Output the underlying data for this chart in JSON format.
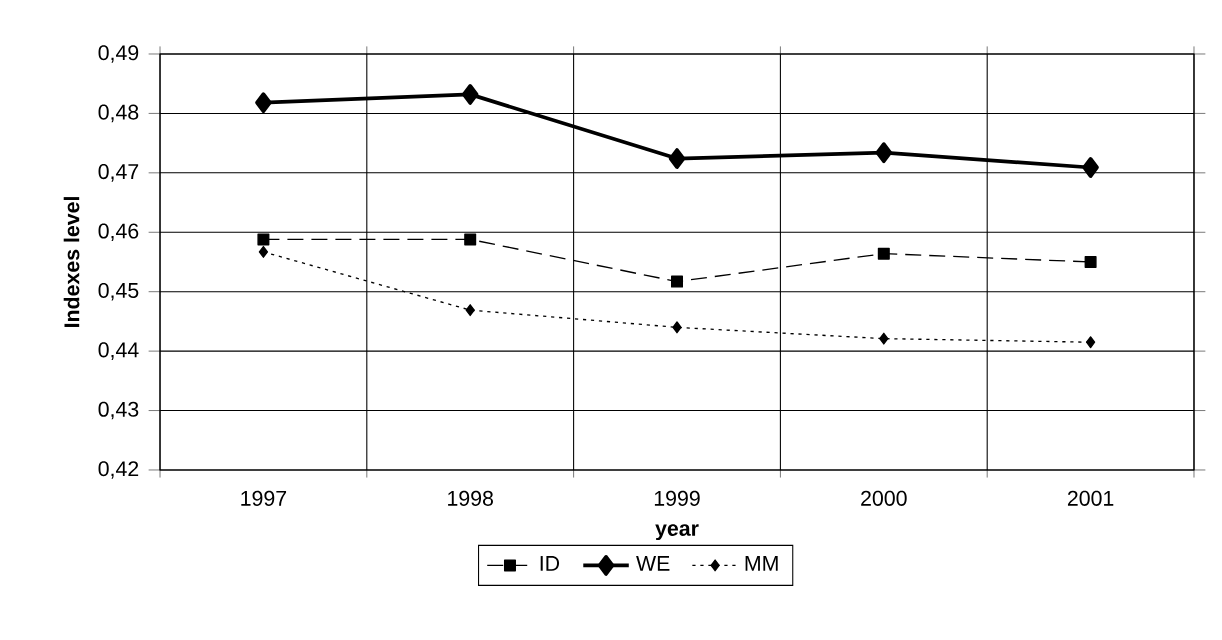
{
  "chart_data": {
    "type": "line",
    "xlabel": "year",
    "ylabel": "Indexes level",
    "categories": [
      "1997",
      "1998",
      "1999",
      "2000",
      "2001"
    ],
    "series": [
      {
        "name": "ID",
        "color": "#000000",
        "marker": "square",
        "line_style": "dashed",
        "values": [
          0.4588,
          0.4588,
          0.4517,
          0.4564,
          0.455
        ]
      },
      {
        "name": "WE",
        "color": "#000000",
        "marker": "diamond",
        "line_style": "solid",
        "values": [
          0.4818,
          0.4832,
          0.4724,
          0.4734,
          0.4709
        ]
      },
      {
        "name": "MM",
        "color": "#000000",
        "marker": "diamond",
        "line_style": "dotted",
        "values": [
          0.4567,
          0.4469,
          0.444,
          0.4421,
          0.4415
        ]
      }
    ],
    "ylim": [
      0.42,
      0.49
    ],
    "yticks": [
      {
        "value": 0.42,
        "label": "0,42"
      },
      {
        "value": 0.43,
        "label": "0,43"
      },
      {
        "value": 0.44,
        "label": "0,44"
      },
      {
        "value": 0.45,
        "label": "0,45"
      },
      {
        "value": 0.46,
        "label": "0,46"
      },
      {
        "value": 0.47,
        "label": "0,47"
      },
      {
        "value": 0.48,
        "label": "0,48"
      },
      {
        "value": 0.49,
        "label": "0,49"
      }
    ],
    "grid": true,
    "legend": "bottom"
  }
}
